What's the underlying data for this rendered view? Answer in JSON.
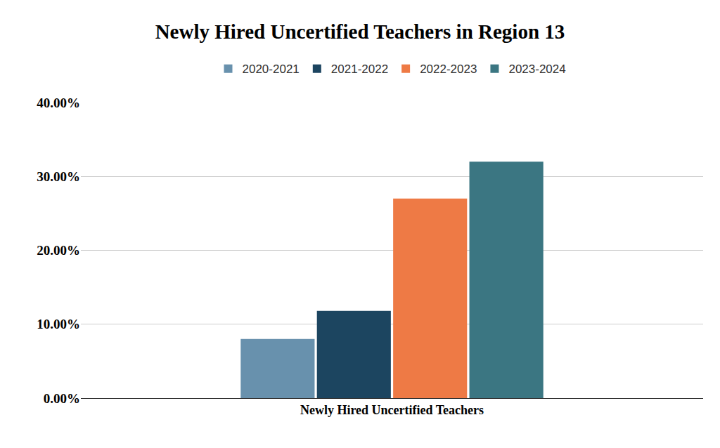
{
  "chart_data": {
    "type": "bar",
    "title": "Newly Hired Uncertified Teachers in Region 13",
    "categories": [
      "Newly Hired Uncertified Teachers"
    ],
    "series": [
      {
        "name": "2020-2021",
        "color": "#6891ad",
        "values": [
          8
        ]
      },
      {
        "name": "2021-2022",
        "color": "#1c4560",
        "values": [
          11.8
        ]
      },
      {
        "name": "2022-2023",
        "color": "#ee7a45",
        "values": [
          27
        ]
      },
      {
        "name": "2023-2024",
        "color": "#3b7682",
        "values": [
          32
        ]
      }
    ],
    "ylim": [
      0,
      40
    ],
    "yticks": [
      {
        "value": 0,
        "label": "0.00%"
      },
      {
        "value": 10,
        "label": "10.00%"
      },
      {
        "value": 20,
        "label": "20.00%"
      },
      {
        "value": 30,
        "label": "30.00%"
      },
      {
        "value": 40,
        "label": "40.00%"
      }
    ],
    "grid": true,
    "legend": "top"
  }
}
